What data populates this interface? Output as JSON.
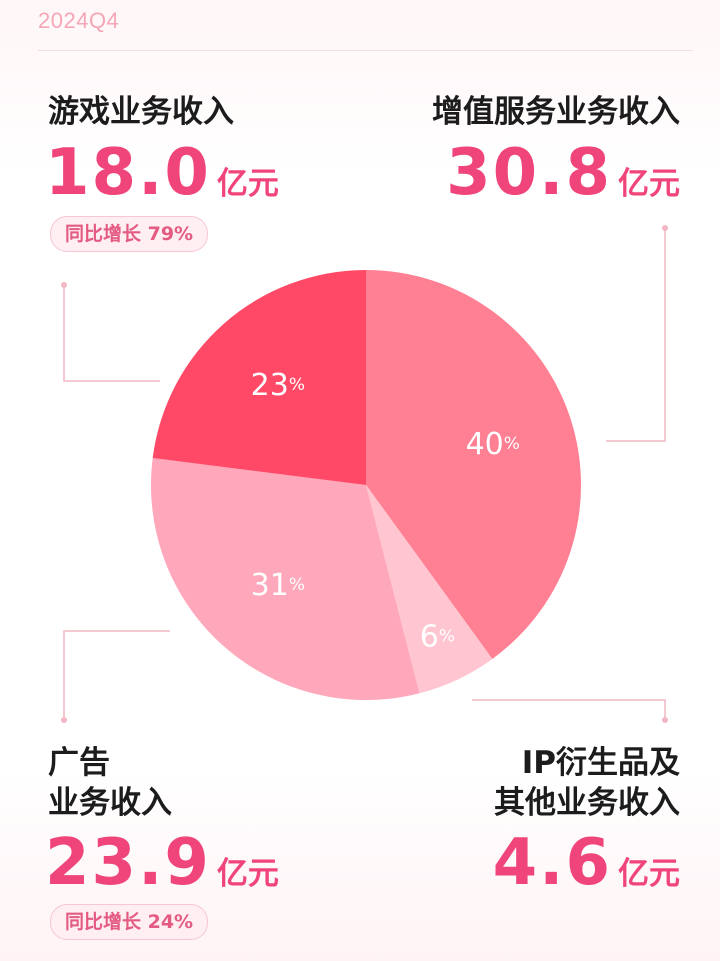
{
  "period": "2024Q4",
  "segments": {
    "games": {
      "title": "游戏业务收入",
      "amount": "18.0",
      "unit": "亿元",
      "growth": "同比增长 79%"
    },
    "vas": {
      "title": "增值服务业务收入",
      "amount": "30.8",
      "unit": "亿元"
    },
    "ads": {
      "title_line1": "广告",
      "title_line2": "业务收入",
      "amount": "23.9",
      "unit": "亿元",
      "growth": "同比增长 24%"
    },
    "ip": {
      "title_line1": "IP衍生品及",
      "title_line2": "其他业务收入",
      "amount": "4.6",
      "unit": "亿元"
    }
  },
  "chart_data": {
    "type": "pie",
    "start": "12 o'clock, clockwise",
    "slices": [
      {
        "key": "vas",
        "label": "40",
        "unit": "%",
        "value": 40,
        "color": "#ff7f93"
      },
      {
        "key": "ip",
        "label": "6",
        "unit": "%",
        "value": 6,
        "color": "#ffc6d1"
      },
      {
        "key": "ads",
        "label": "31",
        "unit": "%",
        "value": 31,
        "color": "#ffa7bb"
      },
      {
        "key": "games",
        "label": "23",
        "unit": "%",
        "value": 23,
        "color": "#ff4966"
      }
    ]
  },
  "colors": {
    "accent": "#f0457a",
    "connector": "#f2b7c3",
    "period": "#f4a7b6"
  }
}
